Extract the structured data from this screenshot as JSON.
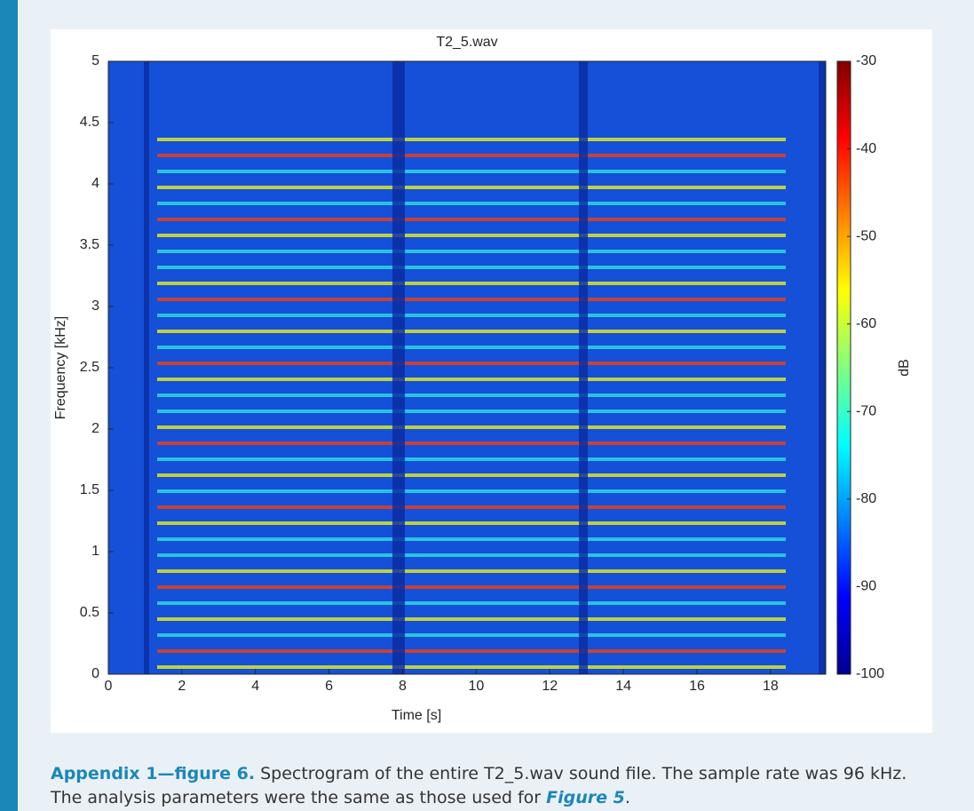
{
  "chart_data": {
    "type": "spectrogram",
    "title": "T2_5.wav",
    "xlabel": "Time [s]",
    "ylabel": "Frequency [kHz]",
    "xlim": [
      0,
      19.5
    ],
    "xticks": [
      0,
      2,
      4,
      6,
      8,
      10,
      12,
      14,
      16,
      18
    ],
    "ylim": [
      0,
      5
    ],
    "yticks": [
      0,
      0.5,
      1,
      1.5,
      2,
      2.5,
      3,
      3.5,
      4,
      4.5,
      5
    ],
    "colorbar": {
      "label": "dB",
      "lim": [
        -100,
        -30
      ],
      "ticks": [
        -100,
        -90,
        -80,
        -70,
        -60,
        -50,
        -40,
        -30
      ],
      "colormap": [
        "#00008f",
        "#0000ff",
        "#0080ff",
        "#00ffff",
        "#80ff80",
        "#ffff00",
        "#ff8000",
        "#ff0000",
        "#800000"
      ]
    }
  },
  "caption": {
    "label": "Appendix 1—figure 6.",
    "text": "Spectrogram of the entire T2_5.wav sound file. The sample rate was 96 kHz. The analysis parameters were the same as those used for",
    "link": "Figure 5",
    "end": "."
  }
}
